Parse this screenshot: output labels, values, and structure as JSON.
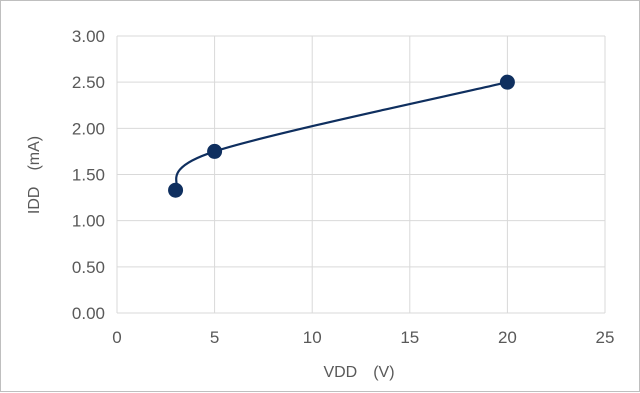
{
  "chart_data": {
    "type": "scatter",
    "title": "",
    "xlabel": "VDD　(V)",
    "ylabel": "IDD　(mA)",
    "xlim": [
      0,
      25
    ],
    "ylim": [
      0,
      3.0
    ],
    "x_ticks": [
      "0",
      "5",
      "10",
      "15",
      "20",
      "25"
    ],
    "y_ticks": [
      "0.00",
      "0.50",
      "1.00",
      "1.50",
      "2.00",
      "2.50",
      "3.00"
    ],
    "grid": true,
    "smooth_line": true,
    "legend": "none",
    "series": [
      {
        "color": "#0f2f5f",
        "x": [
          3,
          5,
          20
        ],
        "y": [
          1.33,
          1.75,
          2.5
        ]
      }
    ]
  }
}
